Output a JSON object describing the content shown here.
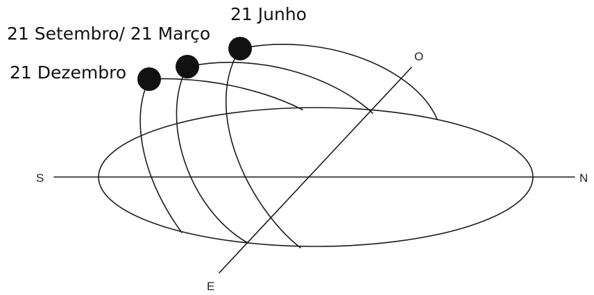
{
  "labels": {
    "june": "21 Junho",
    "equinox": "21 Setembro/ 21 Março",
    "december": "21 Dezembro"
  },
  "directions": {
    "south": "S",
    "north": "N",
    "east": "E",
    "west": "O"
  },
  "colors": {
    "line": "#1a1a1a",
    "sun": "#111111",
    "text": "#111111"
  }
}
